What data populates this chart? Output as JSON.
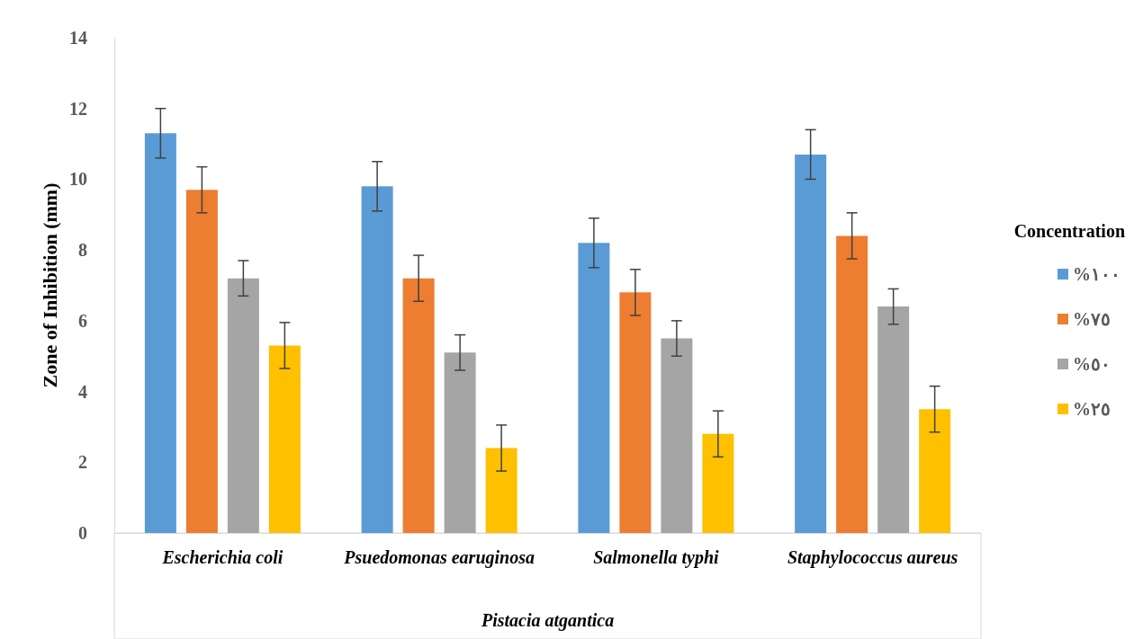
{
  "chart_data": {
    "type": "bar",
    "ylabel": "Zone of Inhibition (mm)",
    "legend_title": "Concentration",
    "categories": [
      "Escherichia coli",
      "Psuedomonas earuginosa",
      "Salmonella typhi",
      "Staphylococcus aureus"
    ],
    "series": [
      {
        "name": "%١٠٠",
        "color": "#5b9bd5",
        "values": [
          11.3,
          9.8,
          8.2,
          10.7
        ],
        "errors": [
          0.7,
          0.7,
          0.7,
          0.7
        ]
      },
      {
        "name": "%٧٥",
        "color": "#ed7d31",
        "values": [
          9.7,
          7.2,
          6.8,
          8.4
        ],
        "errors": [
          0.65,
          0.65,
          0.65,
          0.65
        ]
      },
      {
        "name": "%٥٠",
        "color": "#a5a5a5",
        "values": [
          7.2,
          5.1,
          5.5,
          6.4
        ],
        "errors": [
          0.5,
          0.5,
          0.5,
          0.5
        ]
      },
      {
        "name": "%٢٥",
        "color": "#ffc000",
        "values": [
          5.3,
          2.4,
          2.8,
          3.5
        ],
        "errors": [
          0.65,
          0.65,
          0.65,
          0.65
        ]
      }
    ],
    "ylim": [
      0,
      14
    ],
    "yticks": [
      0,
      2,
      4,
      6,
      8,
      10,
      12,
      14
    ],
    "grid": false,
    "legend": "right",
    "annotations": [
      "Pistacia atgantica"
    ]
  }
}
